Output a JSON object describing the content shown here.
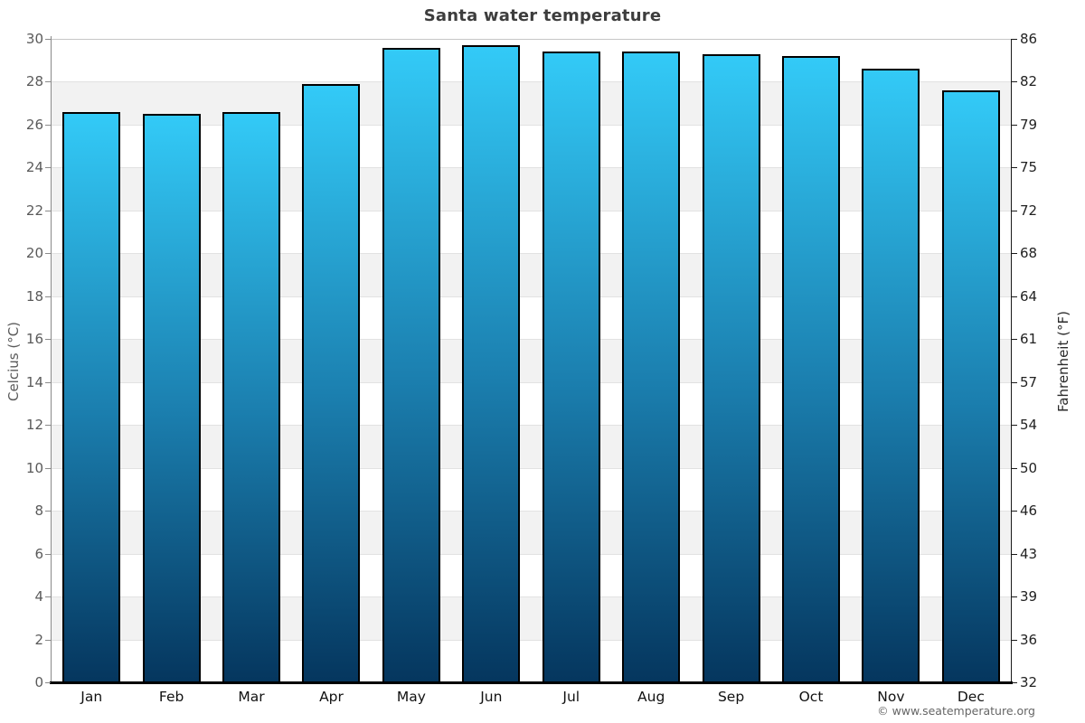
{
  "title": "Santa water temperature",
  "footer": "© www.seatemperature.org",
  "axes": {
    "left_label": "Celcius (°C)",
    "right_label": "Fahrenheit (°F)",
    "left_ticks": [
      "30",
      "28",
      "26",
      "24",
      "22",
      "20",
      "18",
      "16",
      "14",
      "12",
      "10",
      "8",
      "6",
      "4",
      "2",
      "0"
    ],
    "right_ticks": [
      "86",
      "82",
      "79",
      "75",
      "72",
      "68",
      "64",
      "61",
      "57",
      "54",
      "50",
      "46",
      "43",
      "39",
      "36",
      "32"
    ]
  },
  "chart_data": {
    "type": "bar",
    "title": "Santa water temperature",
    "categories": [
      "Jan",
      "Feb",
      "Mar",
      "Apr",
      "May",
      "Jun",
      "Jul",
      "Aug",
      "Sep",
      "Oct",
      "Nov",
      "Dec"
    ],
    "values": [
      26.6,
      26.5,
      26.6,
      27.9,
      29.6,
      29.7,
      29.4,
      29.4,
      29.3,
      29.2,
      28.6,
      27.6
    ],
    "unit": "°C",
    "ylabel": "Celcius (°C)",
    "ylabel_right": "Fahrenheit (°F)",
    "ylim": [
      0,
      30
    ],
    "ytick_step": 2,
    "grid": "alternating-horizontal-bands",
    "legend": "none",
    "colors": {
      "bar_gradient_top": "#33CAF7",
      "bar_gradient_bottom": "#05365E",
      "bar_border": "#000000",
      "band_gray": "#F2F2F2",
      "band_white": "#FFFFFF",
      "gridline": "#E2E2E2",
      "plot_top_border": "#C6C6C6",
      "axis_left_line": "#8A8A8A",
      "axis_right_line": "#1A1A1A",
      "axis_bottom_line": "#000000",
      "tick_label_left": "#5A5A5A",
      "tick_label_right": "#222222",
      "month_label": "#111111",
      "title": "#3D3D3D",
      "footer": "#666666"
    }
  }
}
